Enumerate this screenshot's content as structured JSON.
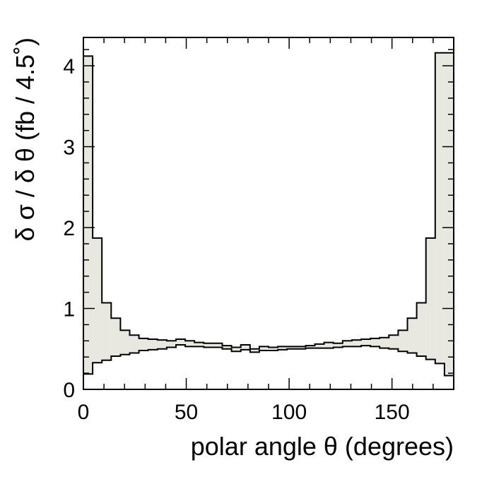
{
  "chart_data": {
    "type": "area",
    "title": "",
    "xlabel": "polar angle θ (degrees)",
    "ylabel": "δ σ / δ θ (fb / 4.5˚)",
    "xlim": [
      0,
      180
    ],
    "ylim": [
      0,
      4.35
    ],
    "bin_width": 4.5,
    "x_ticks": [
      0,
      50,
      100,
      150
    ],
    "x_tick_labels": [
      "0",
      "50",
      "100",
      "150"
    ],
    "y_ticks": [
      0,
      1,
      2,
      3,
      4
    ],
    "y_tick_labels": [
      "0",
      "1",
      "2",
      "3",
      "4"
    ],
    "bin_edges": [
      0,
      4.5,
      9,
      13.5,
      18,
      22.5,
      27,
      31.5,
      36,
      40.5,
      45,
      49.5,
      54,
      58.5,
      63,
      67.5,
      72,
      76.5,
      81,
      85.5,
      90,
      94.5,
      99,
      103.5,
      108,
      112.5,
      117,
      121.5,
      126,
      130.5,
      135,
      139.5,
      144,
      148.5,
      153,
      157.5,
      162,
      166.5,
      171,
      175.5,
      180
    ],
    "series": [
      {
        "role": "upper",
        "values": [
          4.12,
          1.87,
          1.07,
          0.88,
          0.73,
          0.67,
          0.63,
          0.62,
          0.61,
          0.6,
          0.62,
          0.6,
          0.58,
          0.57,
          0.57,
          0.54,
          0.52,
          0.55,
          0.5,
          0.53,
          0.52,
          0.53,
          0.53,
          0.53,
          0.54,
          0.56,
          0.58,
          0.57,
          0.6,
          0.61,
          0.62,
          0.63,
          0.64,
          0.67,
          0.73,
          0.88,
          1.07,
          1.87,
          4.16,
          4.16
        ]
      },
      {
        "role": "lower",
        "values": [
          0.19,
          0.33,
          0.36,
          0.41,
          0.43,
          0.45,
          0.48,
          0.49,
          0.5,
          0.52,
          0.55,
          0.53,
          0.53,
          0.52,
          0.52,
          0.5,
          0.47,
          0.49,
          0.46,
          0.48,
          0.48,
          0.49,
          0.5,
          0.5,
          0.51,
          0.51,
          0.51,
          0.52,
          0.53,
          0.53,
          0.54,
          0.53,
          0.51,
          0.5,
          0.47,
          0.45,
          0.41,
          0.37,
          0.32,
          0.17
        ]
      }
    ],
    "colors": {
      "band_fill": "#e8e8e1",
      "line": "#000000",
      "frame": "#000000"
    },
    "grid": false,
    "legend": "none"
  }
}
